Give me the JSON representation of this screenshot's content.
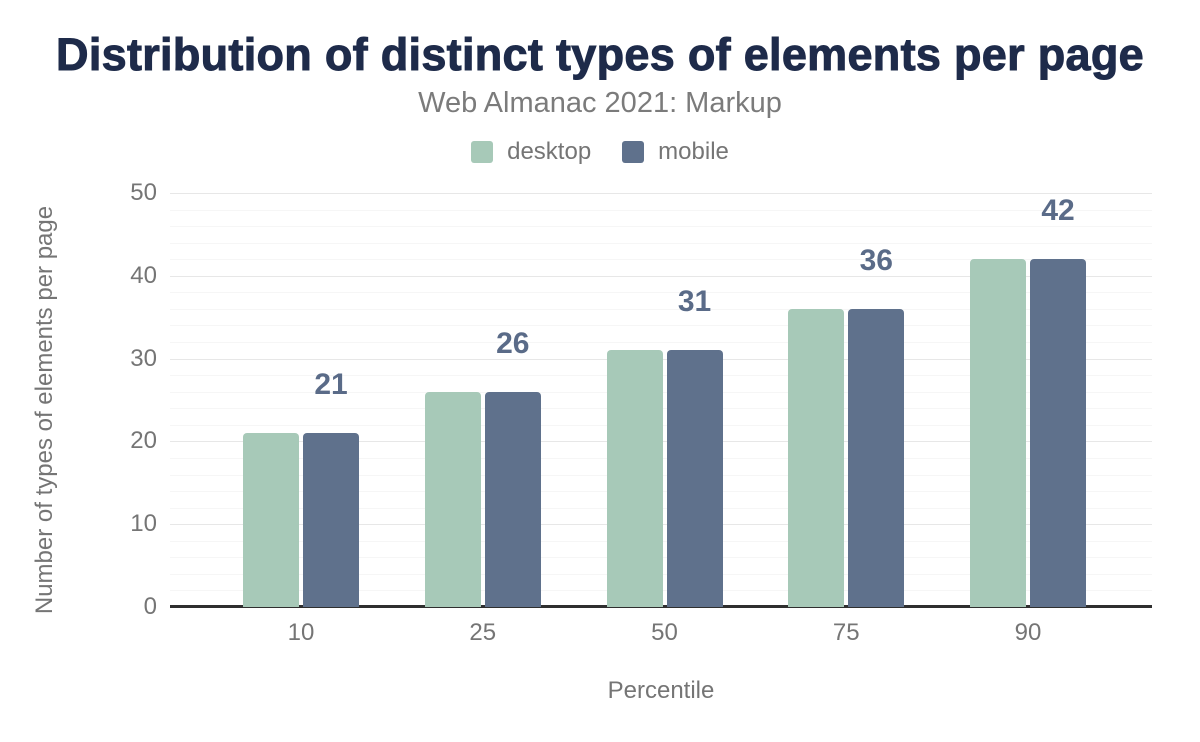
{
  "title": "Distribution of distinct types of elements per page",
  "subtitle": "Web Almanac 2021: Markup",
  "chart_data": {
    "type": "bar",
    "categories": [
      "10",
      "25",
      "50",
      "75",
      "90"
    ],
    "series": [
      {
        "name": "desktop",
        "color": "#a7c9b8",
        "values": [
          21,
          26,
          31,
          36,
          42
        ]
      },
      {
        "name": "mobile",
        "color": "#5f718c",
        "values": [
          21,
          26,
          31,
          36,
          42
        ]
      }
    ],
    "data_labels": [
      "21",
      "26",
      "31",
      "36",
      "42"
    ],
    "title": "Distribution of distinct types of elements per page",
    "subtitle": "Web Almanac 2021: Markup",
    "xlabel": "Percentile",
    "ylabel": "Number of types of elements per page",
    "ylim": [
      0,
      50
    ],
    "yticks": [
      0,
      10,
      20,
      30,
      40,
      50
    ],
    "minor_grid_step": 2,
    "legend_position": "top",
    "label_color": "#5a6b88",
    "title_color": "#1e2b4a",
    "axis_text_color": "#757575"
  }
}
